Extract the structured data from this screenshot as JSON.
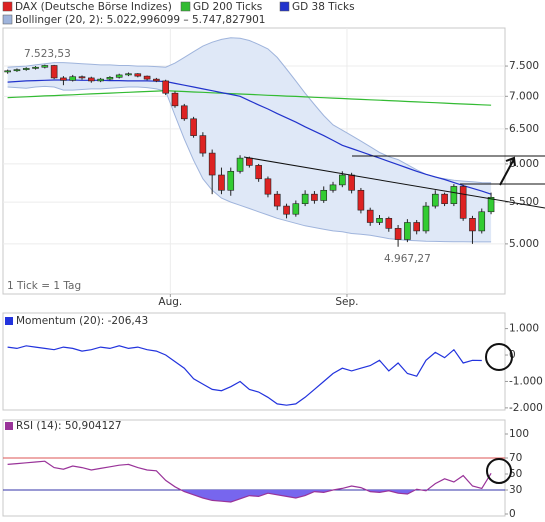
{
  "chart_data": [
    {
      "type": "candlestick",
      "series": [
        {
          "name": "DAX (Deutsche Börse Indizes)",
          "color": "#dd2222",
          "up_color": "#33cc33",
          "open": [
            7400,
            7420,
            7440,
            7460,
            7480,
            7510,
            7300,
            7260,
            7320,
            7300,
            7250,
            7280,
            7310,
            7350,
            7370,
            7330,
            7280,
            7250,
            7050,
            6850,
            6650,
            6400,
            6150,
            5850,
            5650,
            5900,
            6080,
            5980,
            5800,
            5600,
            5450,
            5350,
            5480,
            5600,
            5520,
            5650,
            5720,
            5850,
            5650,
            5400,
            5250,
            5300,
            5180,
            5050,
            5250,
            5150,
            5450,
            5600,
            5480,
            5700,
            5300,
            5150,
            5380
          ],
          "high": [
            7440,
            7460,
            7480,
            7500,
            7523.53,
            7520,
            7330,
            7350,
            7340,
            7320,
            7300,
            7330,
            7370,
            7390,
            7380,
            7340,
            7300,
            7270,
            7080,
            6880,
            6680,
            6450,
            6200,
            5950,
            5950,
            6120,
            6100,
            6000,
            5830,
            5640,
            5480,
            5520,
            5650,
            5640,
            5700,
            5760,
            5900,
            5880,
            5680,
            5430,
            5340,
            5320,
            5220,
            5290,
            5280,
            5500,
            5650,
            5620,
            5730,
            5720,
            5330,
            5420,
            5620
          ],
          "low": [
            7370,
            7400,
            7420,
            7440,
            7460,
            7280,
            7180,
            7240,
            7270,
            7220,
            7230,
            7260,
            7290,
            7330,
            7310,
            7260,
            7230,
            7020,
            6820,
            6620,
            6370,
            6100,
            5600,
            5600,
            5580,
            5870,
            5950,
            5760,
            5560,
            5400,
            5300,
            5320,
            5450,
            5480,
            5490,
            5620,
            5690,
            5610,
            5360,
            5210,
            5220,
            5140,
            4967.27,
            5020,
            5110,
            5120,
            5420,
            5450,
            5450,
            5270,
            5000,
            5120,
            5350
          ],
          "close": [
            7420,
            7440,
            7460,
            7480,
            7510,
            7300,
            7260,
            7320,
            7300,
            7250,
            7280,
            7310,
            7350,
            7370,
            7330,
            7280,
            7250,
            7050,
            6850,
            6650,
            6400,
            6150,
            5850,
            5650,
            5900,
            6080,
            5980,
            5800,
            5600,
            5450,
            5350,
            5480,
            5600,
            5520,
            5650,
            5720,
            5850,
            5650,
            5400,
            5250,
            5300,
            5180,
            5050,
            5250,
            5150,
            5450,
            5600,
            5480,
            5700,
            5300,
            5150,
            5380,
            5560
          ]
        },
        {
          "name": "GD 200 Ticks",
          "color": "#33bb33",
          "values": [
            6980,
            6986,
            6993,
            6999,
            7006,
            7012,
            7019,
            7025,
            7032,
            7038,
            7045,
            7051,
            7058,
            7064,
            7071,
            7077,
            7084,
            7090,
            7083,
            7077,
            7070,
            7064,
            7057,
            7050,
            7044,
            7037,
            7031,
            7024,
            7017,
            7011,
            7004,
            6998,
            6991,
            6984,
            6978,
            6971,
            6965,
            6958,
            6951,
            6945,
            6938,
            6932,
            6925,
            6918,
            6912,
            6905,
            6899,
            6892,
            6885,
            6879,
            6872,
            6866,
            6860
          ]
        },
        {
          "name": "GD 38 Ticks",
          "color": "#2233cc",
          "values": [
            7230,
            7240,
            7250,
            7255,
            7260,
            7265,
            7265,
            7265,
            7260,
            7260,
            7260,
            7255,
            7255,
            7250,
            7250,
            7250,
            7245,
            7240,
            7210,
            7180,
            7150,
            7120,
            7090,
            7060,
            7030,
            7000,
            6930,
            6865,
            6800,
            6730,
            6665,
            6600,
            6530,
            6465,
            6400,
            6330,
            6260,
            6215,
            6170,
            6125,
            6080,
            6035,
            5990,
            5945,
            5900,
            5860,
            5825,
            5790,
            5750,
            5710,
            5675,
            5640,
            5600
          ]
        }
      ],
      "bollinger": {
        "label": "Bollinger (20, 2): 5.022,996099 – 5.747,827901",
        "color": "#9fb4dc",
        "fill": "#dfe8f7",
        "upper": [
          7480,
          7490,
          7500,
          7520,
          7540,
          7560,
          7560,
          7550,
          7540,
          7530,
          7520,
          7520,
          7510,
          7510,
          7500,
          7500,
          7490,
          7480,
          7550,
          7650,
          7750,
          7850,
          7920,
          7970,
          8000,
          7990,
          7950,
          7880,
          7800,
          7650,
          7450,
          7250,
          7050,
          6870,
          6700,
          6560,
          6480,
          6400,
          6320,
          6240,
          6160,
          6100,
          6060,
          5990,
          5920,
          5860,
          5820,
          5800,
          5780,
          5770,
          5760,
          5750,
          5748
        ],
        "lower": [
          7150,
          7140,
          7130,
          7150,
          7160,
          7150,
          7100,
          7100,
          7110,
          7120,
          7120,
          7130,
          7140,
          7150,
          7150,
          7140,
          7120,
          7080,
          6700,
          6350,
          6050,
          5800,
          5650,
          5550,
          5500,
          5460,
          5420,
          5380,
          5340,
          5300,
          5270,
          5240,
          5210,
          5190,
          5170,
          5150,
          5140,
          5120,
          5110,
          5100,
          5080,
          5060,
          5050,
          5040,
          5035,
          5030,
          5028,
          5026,
          5025,
          5024,
          5023,
          5023,
          5023
        ]
      },
      "log_scale": true,
      "ylim": [
        4460,
        8180
      ],
      "yticks": [
        {
          "value": 5000,
          "label": "5.000"
        },
        {
          "value": 5500,
          "label": "5.500"
        },
        {
          "value": 6000,
          "label": "6.000"
        },
        {
          "value": 6500,
          "label": "6.500"
        },
        {
          "value": 7000,
          "label": "7.000"
        },
        {
          "value": 7500,
          "label": "7.500"
        }
      ],
      "xlim": [
        -0.5,
        53.5
      ],
      "xticks": [
        {
          "value": 17.5,
          "label": "Aug."
        },
        {
          "value": 36.5,
          "label": "Sep."
        }
      ],
      "grid": true,
      "annotations": [
        "7.523,53",
        "4.967,27",
        "1 Tick = 1 Tag"
      ]
    },
    {
      "type": "line",
      "label": "Momentum (20): -206,43",
      "series": [
        {
          "color": "#2233dd",
          "values": [
            300,
            250,
            350,
            300,
            250,
            200,
            300,
            250,
            150,
            200,
            300,
            250,
            350,
            250,
            300,
            200,
            150,
            0,
            -250,
            -500,
            -900,
            -1100,
            -1300,
            -1350,
            -1200,
            -1000,
            -1300,
            -1400,
            -1600,
            -1850,
            -1900,
            -1850,
            -1600,
            -1300,
            -1000,
            -700,
            -500,
            -600,
            -500,
            -400,
            -200,
            -600,
            -300,
            -700,
            -800,
            -200,
            100,
            -100,
            200,
            -300,
            -200,
            -206.43
          ]
        }
      ],
      "ylim": [
        -2080,
        1590
      ],
      "yticks": [
        {
          "value": 1000,
          "label": "1.000"
        },
        0,
        {
          "value": -1000,
          "label": "-1.000"
        },
        {
          "value": -2000,
          "label": "-2.000"
        }
      ]
    },
    {
      "type": "line",
      "label": "RSI (14): 50,904127",
      "series": [
        {
          "color": "#993399",
          "values": [
            62,
            63,
            64,
            65,
            66,
            58,
            56,
            60,
            58,
            55,
            57,
            59,
            61,
            62,
            58,
            55,
            54,
            42,
            34,
            28,
            24,
            20,
            17,
            16,
            15,
            19,
            23,
            22,
            26,
            24,
            22,
            20,
            23,
            28,
            27,
            30,
            32,
            35,
            33,
            28,
            27,
            29,
            26,
            25,
            31,
            29,
            38,
            44,
            40,
            48,
            35,
            32,
            50.904127
          ]
        }
      ],
      "ylim": [
        -2.5,
        117.5
      ],
      "yticks": [
        0,
        30,
        50,
        70,
        100
      ],
      "levels": [
        {
          "value": 70,
          "color": "#dd5555"
        },
        {
          "value": 30,
          "color": "#3333aa"
        }
      ],
      "fill_below": 30,
      "fill_color": "#7766ee"
    }
  ]
}
